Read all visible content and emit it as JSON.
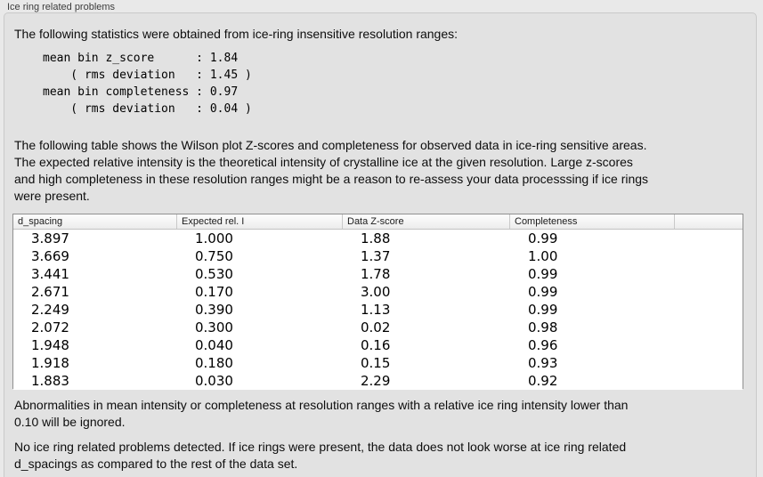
{
  "window": {
    "title": "Ice ring related problems"
  },
  "stats_section": {
    "intro": "The following statistics were obtained from ice-ring insensitive resolution ranges:",
    "stats_block": "mean bin z_score      : 1.84\n    ( rms deviation   : 1.45 )\nmean bin completeness : 0.97\n    ( rms deviation   : 0.04 )",
    "values": {
      "mean_bin_z_score": "1.84",
      "z_score_rms_deviation": "1.45",
      "mean_bin_completeness": "0.97",
      "completeness_rms_deviation": "0.04"
    }
  },
  "table_section": {
    "description": "The following table shows the Wilson plot Z-scores and completeness for observed data in ice-ring sensitive areas.\nThe expected relative intensity is the theoretical intensity of crystalline ice at the given resolution. Large z-scores\nand high completeness in these resolution ranges might be a reason to re-assess your data processsing if ice rings\nwere present.",
    "table": {
      "columns": [
        "d_spacing",
        "Expected rel. I",
        "Data Z-score",
        "Completeness",
        ""
      ],
      "rows": [
        [
          "3.897",
          "1.000",
          "1.88",
          "0.99"
        ],
        [
          "3.669",
          "0.750",
          "1.37",
          "1.00"
        ],
        [
          "3.441",
          "0.530",
          "1.78",
          "0.99"
        ],
        [
          "2.671",
          "0.170",
          "3.00",
          "0.99"
        ],
        [
          "2.249",
          "0.390",
          "1.13",
          "0.99"
        ],
        [
          "2.072",
          "0.300",
          "0.02",
          "0.98"
        ],
        [
          "1.948",
          "0.040",
          "0.16",
          "0.96"
        ],
        [
          "1.918",
          "0.180",
          "0.15",
          "0.93"
        ],
        [
          "1.883",
          "0.030",
          "2.29",
          "0.92"
        ]
      ]
    }
  },
  "notes": {
    "ignore_note": "Abnormalities in mean intensity or completeness at resolution ranges with a relative ice ring intensity lower than\n0.10 will be ignored.",
    "conclusion": "No ice ring related problems detected. If ice rings were present, the data does not look worse at ice ring related\nd_spacings as compared to the rest of the data set."
  }
}
